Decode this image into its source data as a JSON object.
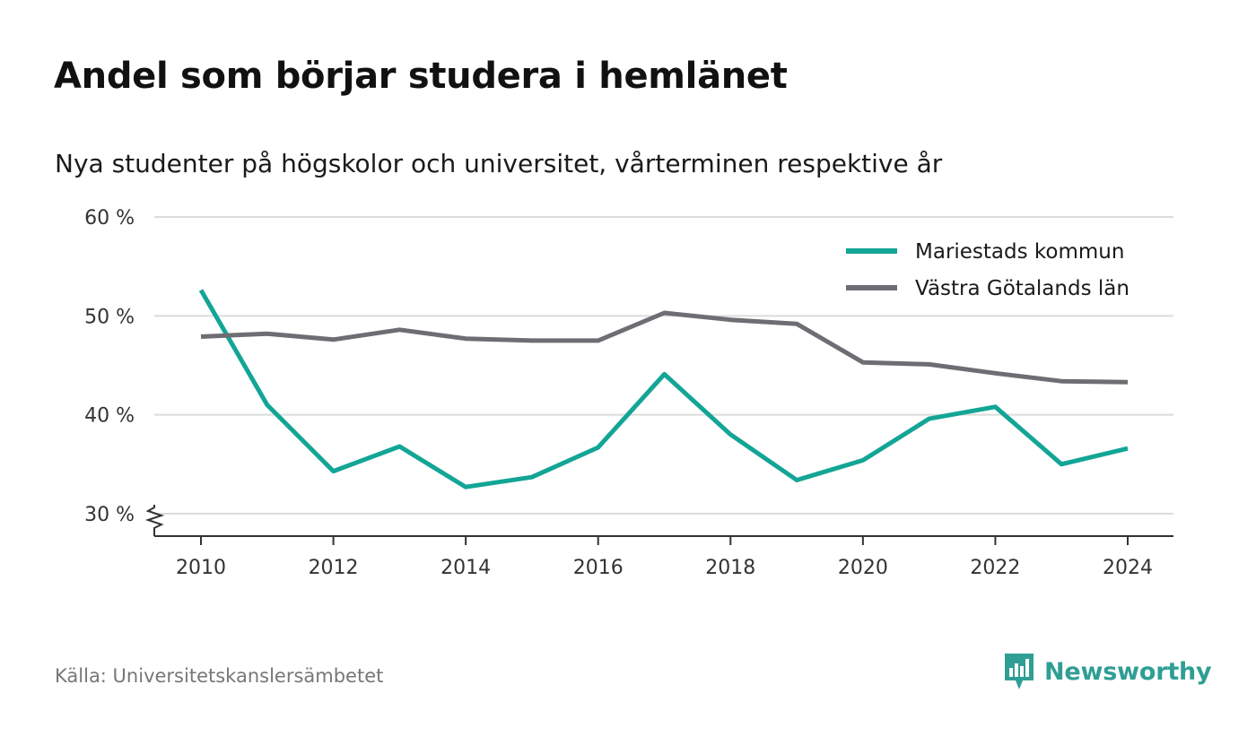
{
  "title": "Andel som börjar studera i hemlänet",
  "subtitle": "Nya studenter på högskolor och universitet, vårterminen respektive år",
  "source": "Källa: Universitetskanslersämbetet",
  "brand": "Newsworthy",
  "colors": {
    "series_1": "#13a596",
    "series_2": "#6e6d73",
    "grid": "#dcdcdc",
    "axis": "#333333",
    "brand": "#2f9e95"
  },
  "icons": {
    "brand": "newsworthy-logo-icon",
    "axis_break": "axis-break-icon"
  },
  "chart_data": {
    "type": "line",
    "title": "Andel som börjar studera i hemlänet",
    "subtitle": "Nya studenter på högskolor och universitet, vårterminen respektive år",
    "xlabel": "",
    "ylabel": "",
    "x": [
      2010,
      2011,
      2012,
      2013,
      2014,
      2015,
      2016,
      2017,
      2018,
      2019,
      2020,
      2021,
      2022,
      2023,
      2024
    ],
    "x_ticks": [
      "2010",
      "2012",
      "2014",
      "2016",
      "2018",
      "2020",
      "2022",
      "2024"
    ],
    "y_ticks": [
      "30 %",
      "40 %",
      "50 %",
      "60 %"
    ],
    "ylim": [
      30,
      60
    ],
    "y_axis_break": true,
    "grid": true,
    "legend": "top-right",
    "series": [
      {
        "name": "Mariestads kommun",
        "color": "#13a596",
        "values": [
          52.6,
          41.0,
          34.3,
          36.8,
          32.7,
          33.7,
          36.7,
          44.1,
          38.0,
          33.4,
          35.4,
          39.6,
          40.8,
          35.0,
          36.6
        ]
      },
      {
        "name": "Västra Götalands län",
        "color": "#6e6d73",
        "values": [
          47.9,
          48.2,
          47.6,
          48.6,
          47.7,
          47.5,
          47.5,
          50.3,
          49.6,
          49.2,
          45.3,
          45.1,
          44.2,
          43.4,
          43.3
        ]
      }
    ]
  }
}
